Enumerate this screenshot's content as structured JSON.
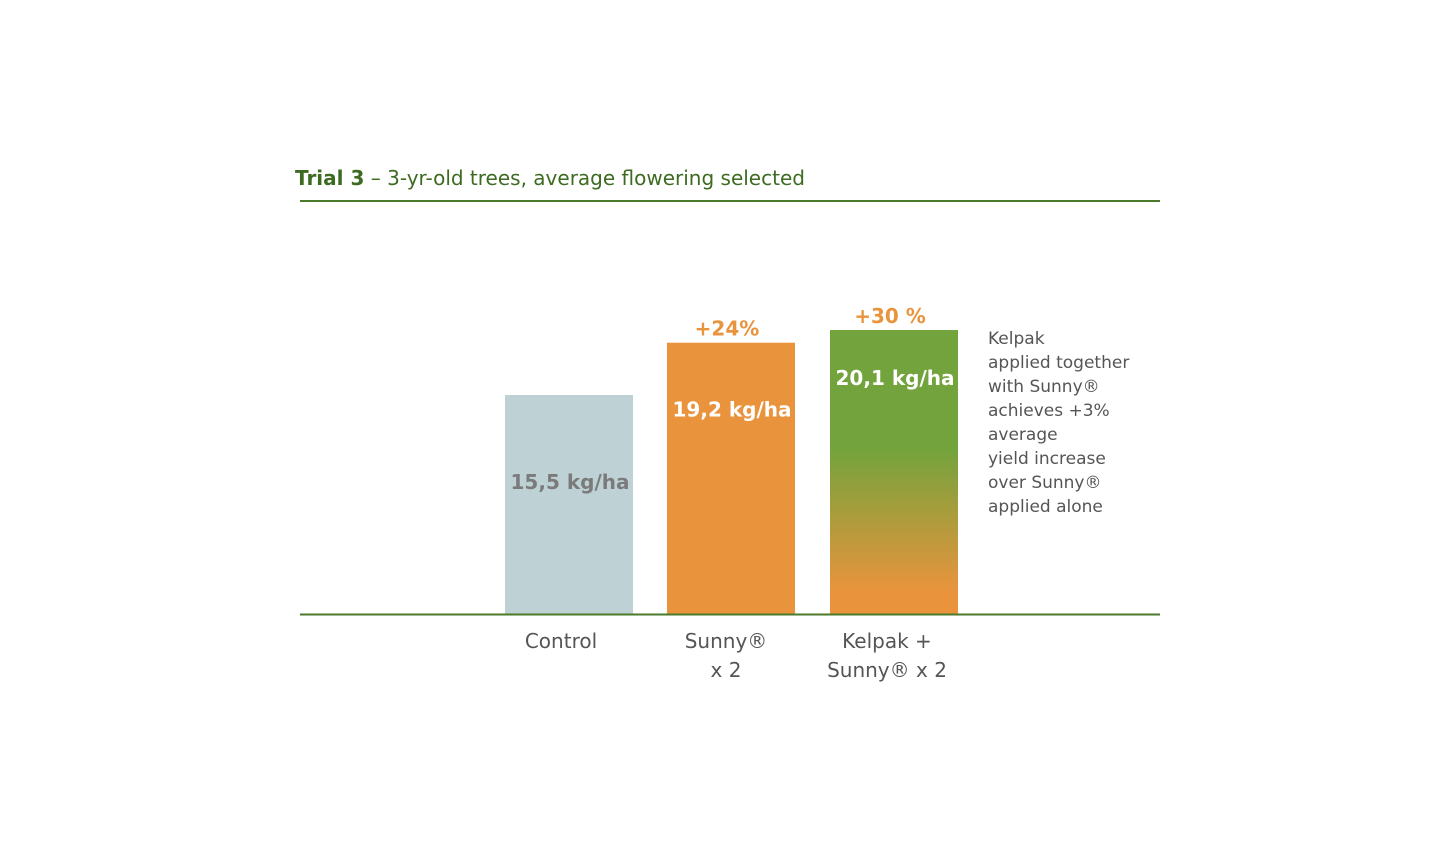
{
  "chart_data": {
    "type": "bar",
    "title_bold": "Trial 3",
    "title_rest": " – 3-yr-old trees, average flowering selected",
    "categories": [
      {
        "line1": "Control",
        "line2": ""
      },
      {
        "line1": "Sunny®",
        "line2": "x 2"
      },
      {
        "line1": "Kelpak +",
        "line2": "Sunny® x 2"
      }
    ],
    "values": [
      15.5,
      19.2,
      20.1
    ],
    "value_labels": [
      "15,5 kg/ha",
      "19,2 kg/ha",
      "20,1 kg/ha"
    ],
    "increase_labels": [
      "",
      "+24%",
      "+30 %"
    ],
    "ylim": [
      0,
      20.1
    ],
    "grid": false,
    "colors": {
      "control": "#bed2d6",
      "sunny": "#e9943d",
      "kelpak_top": "#73a33c",
      "kelpak_bottom": "#e9943d",
      "increase_text": "#e9943d",
      "rule": "#4a7a2a"
    }
  },
  "note": {
    "lines": [
      "Kelpak",
      "applied together",
      "with Sunny®",
      "achieves +3%",
      "average",
      "yield increase",
      "over Sunny®",
      "applied alone"
    ]
  }
}
